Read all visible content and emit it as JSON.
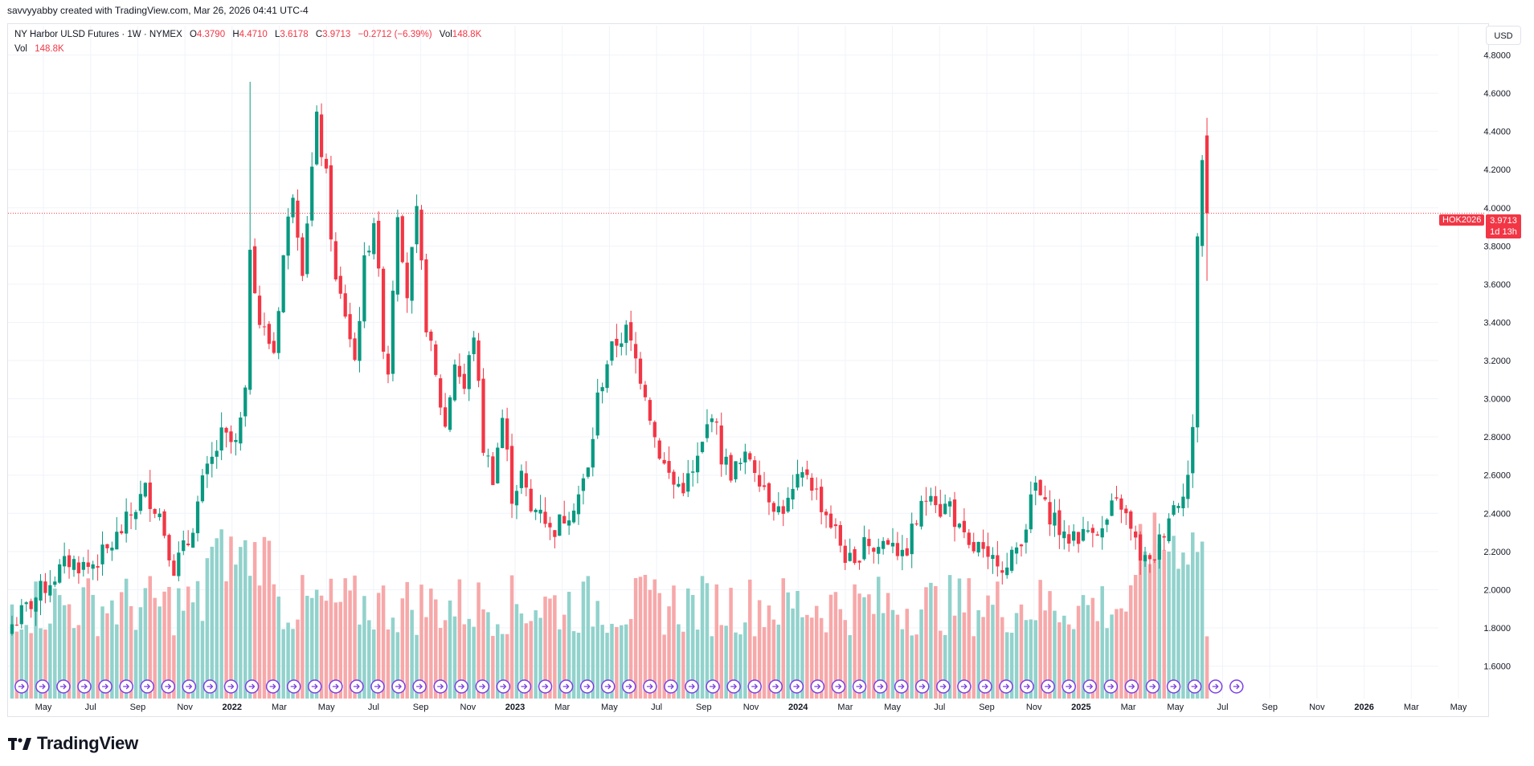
{
  "header": {
    "created_by": "savvyyabby created with TradingView.com, Mar 26, 2026 04:41 UTC-4"
  },
  "legend": {
    "symbol": "NY Harbor ULSD Futures · 1W · NYMEX",
    "open_label": "O",
    "open": "4.3790",
    "high_label": "H",
    "high": "4.4710",
    "low_label": "L",
    "low": "3.6178",
    "close_label": "C",
    "close": "3.9713",
    "change": "−0.2712 (−6.39%)",
    "vol_label": "Vol",
    "vol": "148.8K"
  },
  "volume_legend": {
    "label": "Vol",
    "value": "148.8K"
  },
  "currency_button": "USD",
  "last_price": {
    "ticker": "HOK2026",
    "price": "3.9713",
    "countdown": "1d 13h",
    "value": 3.9713
  },
  "branding": {
    "name": "TradingView"
  },
  "colors": {
    "up": "#089981",
    "down": "#f23645",
    "vol_up": "#92d2cc",
    "vol_down": "#f7a8a9",
    "event_icon": "#7b3fe4"
  },
  "chart_data": {
    "type": "candlestick",
    "interval": "1W",
    "y_axis": {
      "ticks": [
        "1.6000",
        "1.8000",
        "2.0000",
        "2.2000",
        "2.4000",
        "2.6000",
        "2.8000",
        "3.0000",
        "3.2000",
        "3.4000",
        "3.6000",
        "3.8000",
        "4.0000",
        "4.2000",
        "4.4000",
        "4.6000",
        "4.8000"
      ],
      "range": [
        1.43,
        4.92
      ],
      "currency": "USD"
    },
    "x_axis": {
      "labels": [
        "May",
        "Jul",
        "Sep",
        "Nov",
        "2022",
        "Mar",
        "May",
        "Jul",
        "Sep",
        "Nov",
        "2023",
        "Mar",
        "May",
        "Jul",
        "Sep",
        "Nov",
        "2024",
        "Mar",
        "May",
        "Jul",
        "Sep",
        "Nov",
        "2025",
        "Mar",
        "May",
        "Jul",
        "Sep",
        "Nov",
        "2026",
        "Mar",
        "May"
      ],
      "bold_labels": [
        "2022",
        "2023",
        "2024",
        "2025",
        "2026"
      ]
    },
    "anchors": [
      [
        0,
        1.82
      ],
      [
        3,
        1.9
      ],
      [
        8,
        2.05
      ],
      [
        12,
        2.15
      ],
      [
        16,
        2.12
      ],
      [
        20,
        2.2
      ],
      [
        24,
        2.35
      ],
      [
        28,
        2.52
      ],
      [
        31,
        2.4
      ],
      [
        34,
        2.12
      ],
      [
        37,
        2.25
      ],
      [
        40,
        2.55
      ],
      [
        44,
        2.8
      ],
      [
        47,
        2.75
      ],
      [
        49,
        3.0
      ],
      [
        50,
        3.82
      ],
      [
        52,
        3.4
      ],
      [
        55,
        3.25
      ],
      [
        57,
        3.75
      ],
      [
        59,
        4.1
      ],
      [
        61,
        3.7
      ],
      [
        64,
        4.45
      ],
      [
        66,
        4.15
      ],
      [
        68,
        3.6
      ],
      [
        70,
        3.45
      ],
      [
        72,
        3.2
      ],
      [
        74,
        3.7
      ],
      [
        76,
        3.95
      ],
      [
        78,
        3.3
      ],
      [
        79,
        3.15
      ],
      [
        80,
        3.6
      ],
      [
        81,
        4.0
      ],
      [
        83,
        3.55
      ],
      [
        85,
        3.95
      ],
      [
        87,
        3.4
      ],
      [
        89,
        3.1
      ],
      [
        91,
        2.85
      ],
      [
        93,
        3.2
      ],
      [
        95,
        3.05
      ],
      [
        97,
        3.35
      ],
      [
        99,
        2.75
      ],
      [
        101,
        2.6
      ],
      [
        103,
        2.9
      ],
      [
        105,
        2.5
      ],
      [
        107,
        2.6
      ],
      [
        109,
        2.4
      ],
      [
        111,
        2.45
      ],
      [
        113,
        2.3
      ],
      [
        115,
        2.35
      ],
      [
        117,
        2.42
      ],
      [
        119,
        2.5
      ],
      [
        121,
        2.62
      ],
      [
        123,
        3.0
      ],
      [
        125,
        3.2
      ],
      [
        127,
        3.3
      ],
      [
        129,
        3.35
      ],
      [
        131,
        3.2
      ],
      [
        133,
        3.05
      ],
      [
        135,
        2.8
      ],
      [
        137,
        2.65
      ],
      [
        139,
        2.55
      ],
      [
        141,
        2.55
      ],
      [
        143,
        2.6
      ],
      [
        145,
        2.75
      ],
      [
        147,
        2.95
      ],
      [
        149,
        2.7
      ],
      [
        151,
        2.62
      ],
      [
        153,
        2.65
      ],
      [
        155,
        2.7
      ],
      [
        157,
        2.6
      ],
      [
        159,
        2.5
      ],
      [
        161,
        2.42
      ],
      [
        163,
        2.45
      ],
      [
        165,
        2.55
      ],
      [
        167,
        2.62
      ],
      [
        169,
        2.5
      ],
      [
        171,
        2.4
      ],
      [
        173,
        2.3
      ],
      [
        175,
        2.18
      ],
      [
        177,
        2.1
      ],
      [
        179,
        2.3
      ],
      [
        181,
        2.2
      ],
      [
        183,
        2.25
      ],
      [
        185,
        2.28
      ],
      [
        187,
        2.15
      ],
      [
        189,
        2.3
      ],
      [
        191,
        2.42
      ],
      [
        193,
        2.55
      ],
      [
        195,
        2.42
      ],
      [
        197,
        2.45
      ],
      [
        199,
        2.3
      ],
      [
        201,
        2.2
      ],
      [
        203,
        2.22
      ],
      [
        205,
        2.12
      ],
      [
        207,
        2.18
      ],
      [
        209,
        2.1
      ],
      [
        211,
        2.22
      ],
      [
        213,
        2.35
      ],
      [
        215,
        2.55
      ],
      [
        217,
        2.42
      ],
      [
        219,
        2.38
      ],
      [
        221,
        2.25
      ],
      [
        223,
        2.3
      ],
      [
        225,
        2.28
      ],
      [
        227,
        2.35
      ],
      [
        229,
        2.3
      ],
      [
        231,
        2.42
      ],
      [
        233,
        2.45
      ],
      [
        235,
        2.3
      ],
      [
        237,
        2.18
      ],
      [
        239,
        2.12
      ],
      [
        241,
        2.25
      ],
      [
        243,
        2.4
      ],
      [
        245,
        2.48
      ],
      [
        247,
        2.6
      ],
      [
        248,
        2.82
      ],
      [
        249,
        4.0
      ],
      [
        250,
        4.38
      ],
      [
        251,
        3.97
      ]
    ],
    "candle_count": 252,
    "last_candle": {
      "open": 4.379,
      "high": 4.471,
      "low": 3.6178,
      "close": 3.9713,
      "volume": "148.8K"
    },
    "volume": {
      "shown_as": "bars",
      "relative_range": "low to high"
    }
  }
}
